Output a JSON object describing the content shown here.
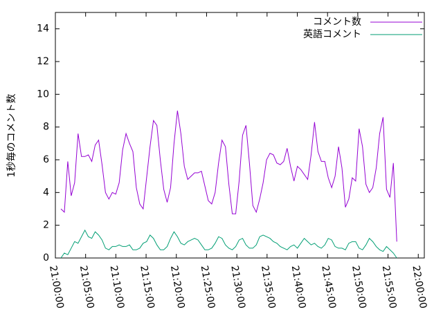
{
  "chart_data": {
    "type": "line",
    "y_label": "1秒毎のコメント数",
    "x": [
      "21:00:55",
      "21:01:29",
      "21:02:03",
      "21:02:37",
      "21:03:11",
      "21:03:45",
      "21:04:19",
      "21:04:53",
      "21:05:27",
      "21:06:01",
      "21:06:35",
      "21:07:09",
      "21:07:43",
      "21:08:17",
      "21:08:51",
      "21:09:25",
      "21:09:59",
      "21:10:33",
      "21:11:07",
      "21:11:41",
      "21:12:15",
      "21:12:49",
      "21:13:23",
      "21:13:57",
      "21:14:31",
      "21:15:05",
      "21:15:39",
      "21:16:13",
      "21:16:47",
      "21:17:21",
      "21:17:55",
      "21:18:29",
      "21:19:03",
      "21:19:37",
      "21:20:11",
      "21:20:45",
      "21:21:19",
      "21:21:53",
      "21:22:27",
      "21:23:01",
      "21:23:35",
      "21:24:09",
      "21:24:43",
      "21:25:17",
      "21:25:51",
      "21:26:25",
      "21:26:59",
      "21:27:33",
      "21:28:07",
      "21:28:41",
      "21:29:15",
      "21:29:49",
      "21:30:23",
      "21:30:57",
      "21:31:31",
      "21:32:05",
      "21:32:39",
      "21:33:13",
      "21:33:47",
      "21:34:21",
      "21:34:55",
      "21:35:29",
      "21:36:03",
      "21:36:37",
      "21:37:11",
      "21:37:45",
      "21:38:19",
      "21:38:53",
      "21:39:27",
      "21:40:01",
      "21:40:35",
      "21:41:09",
      "21:41:43",
      "21:42:17",
      "21:42:51",
      "21:43:25",
      "21:43:59",
      "21:44:33",
      "21:45:07",
      "21:45:41",
      "21:46:15",
      "21:46:49",
      "21:47:23",
      "21:47:57",
      "21:48:31",
      "21:49:05",
      "21:49:39",
      "21:50:13",
      "21:50:47",
      "21:51:21",
      "21:51:55",
      "21:52:29",
      "21:53:03",
      "21:53:37",
      "21:54:11",
      "21:54:45",
      "21:55:19",
      "21:55:53",
      "21:56:27"
    ],
    "series": [
      {
        "name": "コメント数",
        "color": "#9400d3",
        "values": [
          3.0,
          2.8,
          5.9,
          3.8,
          4.6,
          7.6,
          6.2,
          6.2,
          6.3,
          5.9,
          6.9,
          7.2,
          5.7,
          4.0,
          3.6,
          4.0,
          3.9,
          4.6,
          6.6,
          7.6,
          7.0,
          6.5,
          4.3,
          3.3,
          3.0,
          4.9,
          6.8,
          8.4,
          8.1,
          6.0,
          4.2,
          3.4,
          4.3,
          7.0,
          9.0,
          7.6,
          5.6,
          4.8,
          5.0,
          5.2,
          5.2,
          5.3,
          4.4,
          3.5,
          3.3,
          4.0,
          5.8,
          7.2,
          6.8,
          4.5,
          2.7,
          2.7,
          4.7,
          7.5,
          8.1,
          5.8,
          3.2,
          2.8,
          3.6,
          4.6,
          6.0,
          6.4,
          6.3,
          5.8,
          5.7,
          5.9,
          6.7,
          5.6,
          4.7,
          5.6,
          5.4,
          5.1,
          4.8,
          6.3,
          8.3,
          6.5,
          5.9,
          5.9,
          4.9,
          4.3,
          5.0,
          6.8,
          5.5,
          3.1,
          3.6,
          4.9,
          4.7,
          7.9,
          6.8,
          4.5,
          4.0,
          4.3,
          5.5,
          7.6,
          8.6,
          4.2,
          3.7,
          5.8,
          1.0
        ]
      },
      {
        "name": "英語コメント",
        "color": "#009e73",
        "values": [
          0.0,
          0.3,
          0.2,
          0.6,
          1.0,
          0.9,
          1.3,
          1.7,
          1.3,
          1.2,
          1.6,
          1.4,
          1.1,
          0.6,
          0.5,
          0.7,
          0.7,
          0.8,
          0.7,
          0.7,
          0.8,
          0.5,
          0.5,
          0.6,
          0.9,
          1.0,
          1.4,
          1.2,
          0.8,
          0.5,
          0.5,
          0.7,
          1.2,
          1.6,
          1.3,
          0.9,
          0.8,
          1.0,
          1.1,
          1.2,
          1.1,
          0.8,
          0.5,
          0.5,
          0.6,
          0.9,
          1.3,
          1.2,
          0.8,
          0.6,
          0.5,
          0.7,
          1.1,
          1.2,
          0.8,
          0.6,
          0.6,
          0.8,
          1.3,
          1.4,
          1.3,
          1.2,
          1.0,
          0.9,
          0.7,
          0.6,
          0.5,
          0.7,
          0.8,
          0.6,
          0.9,
          1.2,
          1.0,
          0.8,
          0.9,
          0.7,
          0.6,
          0.8,
          1.2,
          1.1,
          0.7,
          0.6,
          0.6,
          0.5,
          0.9,
          1.0,
          1.0,
          0.6,
          0.5,
          0.8,
          1.2,
          1.0,
          0.7,
          0.5,
          0.4,
          0.7,
          0.5,
          0.3,
          0.0
        ]
      }
    ],
    "xlim": [
      "21:00:00",
      "22:01:00"
    ],
    "xticks": [
      "21:00:00",
      "21:05:00",
      "21:10:00",
      "21:15:00",
      "21:20:00",
      "21:25:00",
      "21:30:00",
      "21:35:00",
      "21:40:00",
      "21:45:00",
      "21:50:00",
      "21:55:00",
      "22:00:00"
    ],
    "ylim": [
      0,
      15
    ],
    "yticks": [
      0,
      2,
      4,
      6,
      8,
      10,
      12,
      14
    ],
    "legend": "top-right"
  }
}
